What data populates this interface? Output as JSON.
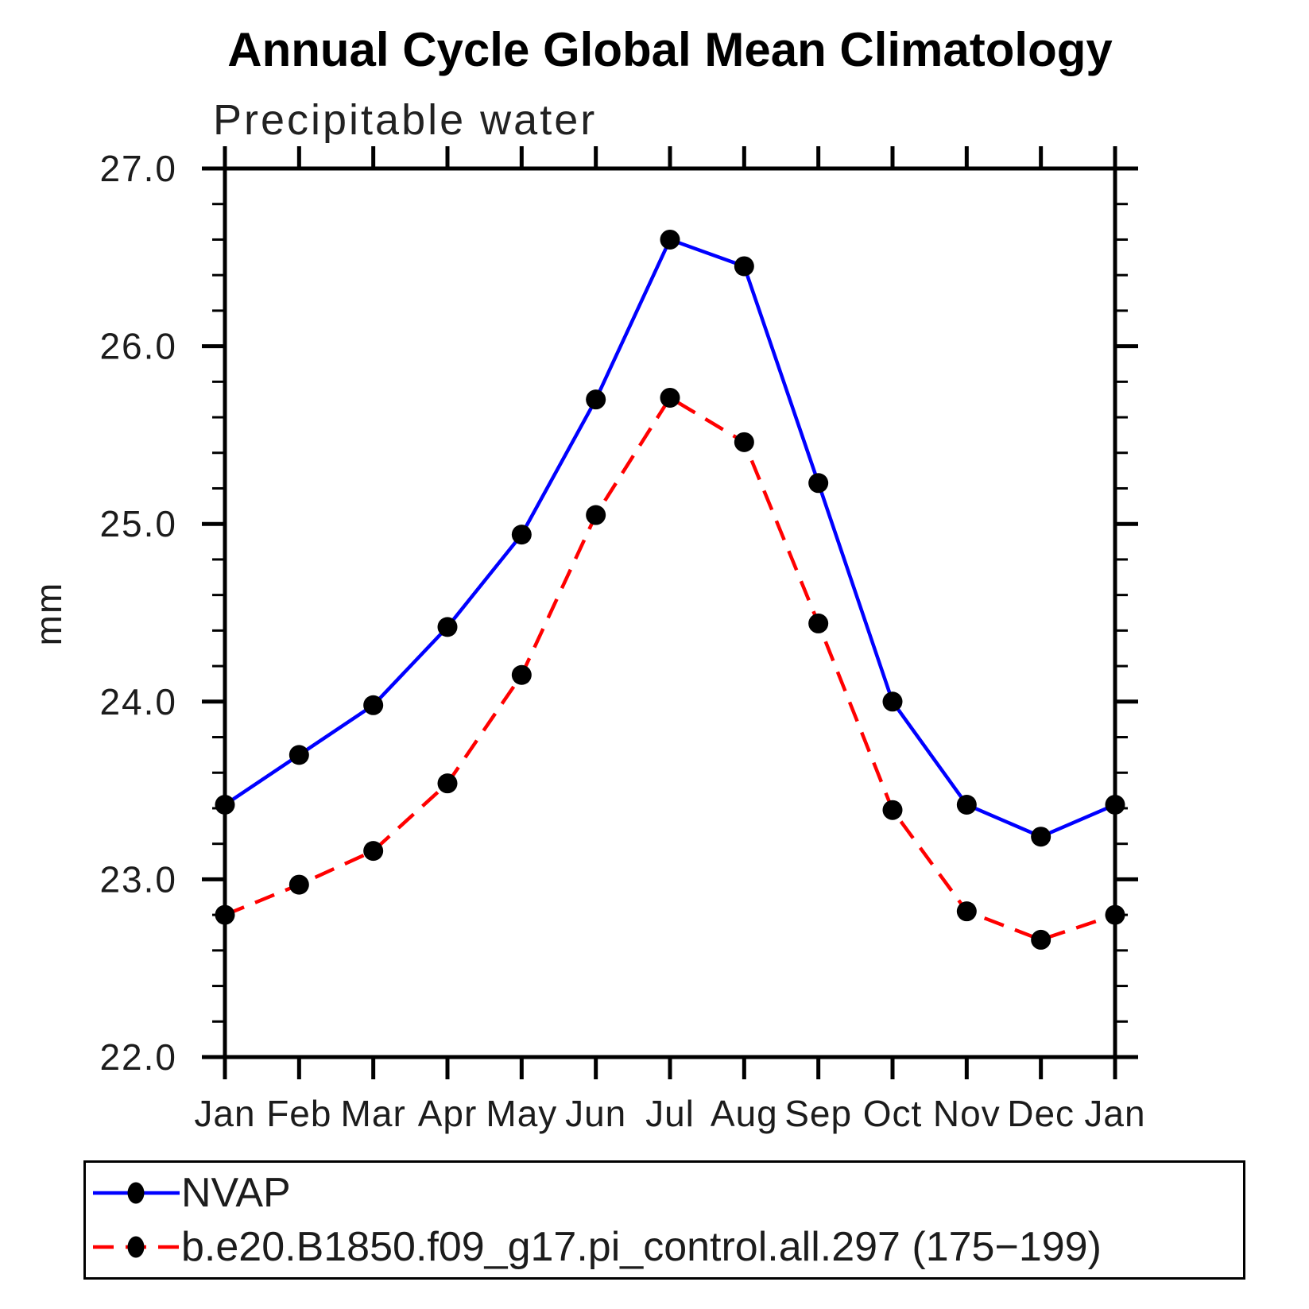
{
  "header": {
    "title": "Annual Cycle Global Mean Climatology",
    "subtitle": "Precipitable water"
  },
  "chart_data": {
    "type": "line",
    "title": "Annual Cycle Global Mean Climatology",
    "subtitle": "Precipitable water",
    "xlabel": "",
    "ylabel": "mm",
    "x_categories": [
      "Jan",
      "Feb",
      "Mar",
      "Apr",
      "May",
      "Jun",
      "Jul",
      "Aug",
      "Sep",
      "Oct",
      "Nov",
      "Dec",
      "Jan"
    ],
    "ylim": [
      22.0,
      27.0
    ],
    "ytick_major": [
      22.0,
      23.0,
      24.0,
      25.0,
      26.0,
      27.0
    ],
    "ytick_labels": [
      "22.0",
      "23.0",
      "24.0",
      "25.0",
      "26.0",
      "27.0"
    ],
    "ytick_minor_step": 0.2,
    "grid": false,
    "legend_position": "bottom",
    "series": [
      {
        "name": "NVAP",
        "color": "#0000ff",
        "line_style": "solid",
        "marker": "circle",
        "marker_color": "#000000",
        "values": [
          23.42,
          23.7,
          23.98,
          24.42,
          24.94,
          25.7,
          26.6,
          26.45,
          25.23,
          24.0,
          23.42,
          23.24,
          23.42
        ]
      },
      {
        "name": "b.e20.B1850.f09_g17.pi_control.all.297 (175−199)",
        "color": "#ff0000",
        "line_style": "dashed",
        "marker": "circle",
        "marker_color": "#000000",
        "values": [
          22.8,
          22.97,
          23.16,
          23.54,
          24.15,
          25.05,
          25.71,
          25.46,
          24.44,
          23.39,
          22.82,
          22.66,
          22.8
        ]
      }
    ]
  }
}
